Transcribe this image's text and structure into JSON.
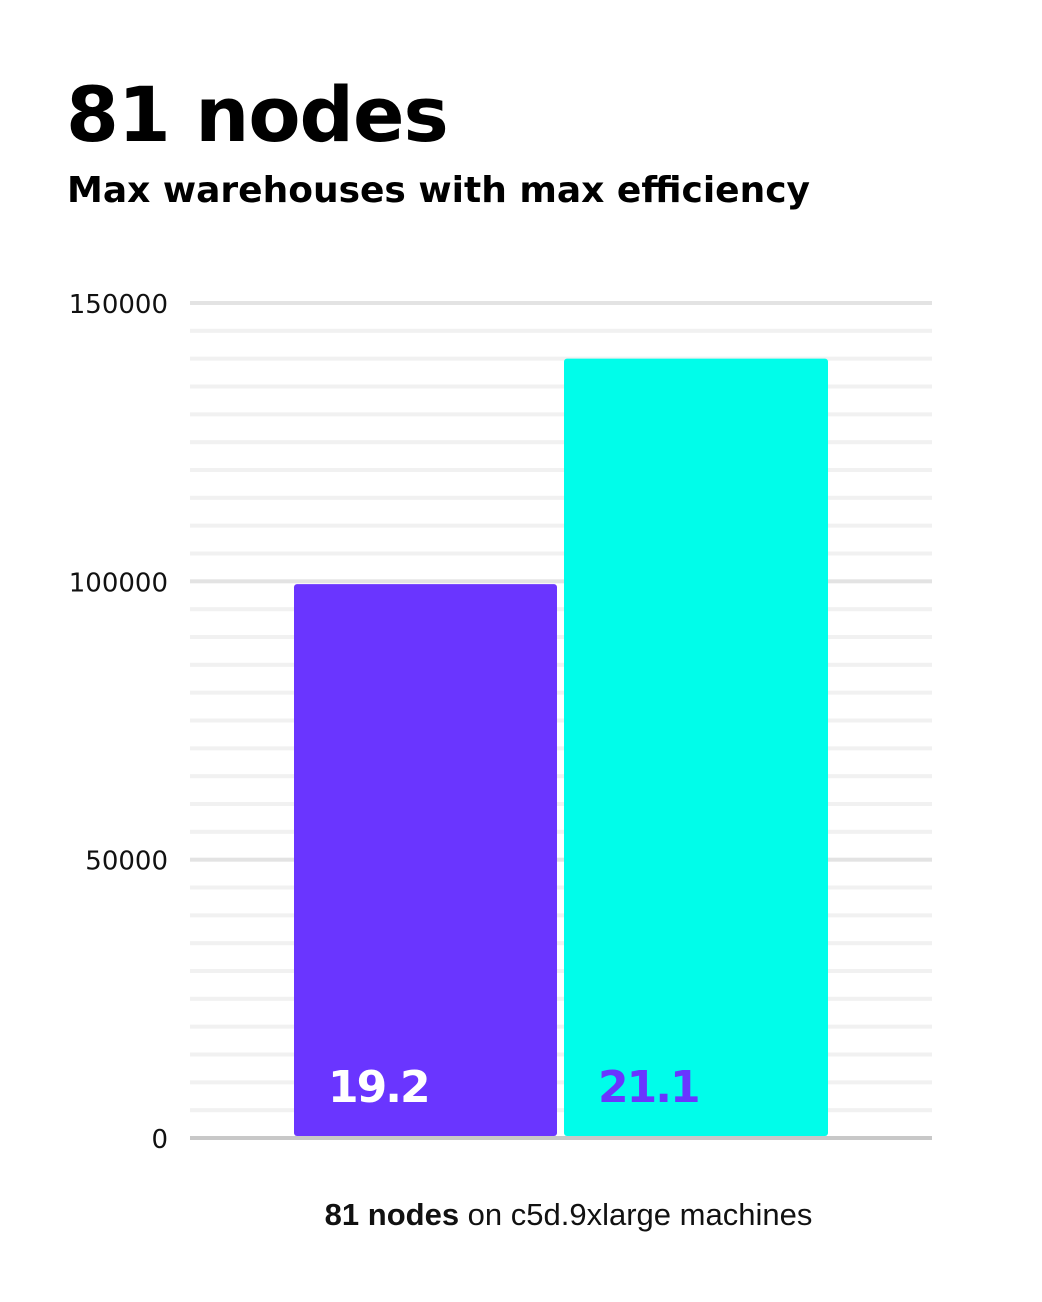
{
  "title": "81 nodes",
  "subtitle": "Max warehouses with max efficiency",
  "chart_data": {
    "type": "bar",
    "title": "81 nodes",
    "subtitle": "Max warehouses with max efficiency",
    "categories": [
      "",
      ""
    ],
    "values": [
      99500,
      140000
    ],
    "data_labels": [
      "19.2",
      "21.1"
    ],
    "bar_colors": [
      "#6a35ff",
      "#00fdea"
    ],
    "label_colors": [
      "#ffffff",
      "#6a35ff"
    ],
    "ylim": [
      0,
      150000
    ],
    "yticks": [
      "0",
      "50000",
      "100000",
      "150000"
    ],
    "minor_grid_step": 5000,
    "grid": true,
    "xlabel_bold": "81 nodes",
    "xlabel_rest": " on c5d.9xlarge machines"
  }
}
